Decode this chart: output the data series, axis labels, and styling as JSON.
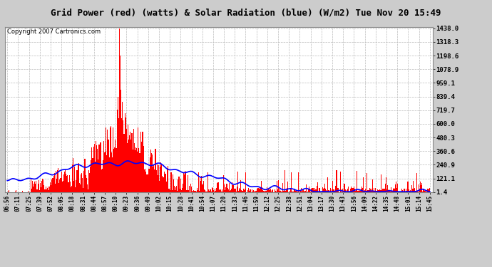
{
  "title": "Grid Power (red) (watts) & Solar Radiation (blue) (W/m2) Tue Nov 20 15:49",
  "copyright_text": "Copyright 2007 Cartronics.com",
  "yticks": [
    1.4,
    121.1,
    240.9,
    360.6,
    480.3,
    600.0,
    719.7,
    839.4,
    959.1,
    1078.9,
    1198.6,
    1318.3,
    1438.0
  ],
  "ymin": 0,
  "ymax": 1438.0,
  "xtick_labels": [
    "06:56",
    "07:11",
    "07:25",
    "07:39",
    "07:52",
    "08:05",
    "08:18",
    "08:31",
    "08:44",
    "08:57",
    "09:10",
    "09:23",
    "09:36",
    "09:49",
    "10:02",
    "10:15",
    "10:28",
    "10:41",
    "10:54",
    "11:07",
    "11:20",
    "11:33",
    "11:46",
    "11:59",
    "12:12",
    "12:25",
    "12:38",
    "12:51",
    "13:04",
    "13:17",
    "13:30",
    "13:43",
    "13:56",
    "14:09",
    "14:22",
    "14:35",
    "14:48",
    "15:01",
    "15:14",
    "15:45"
  ],
  "bg_color": "#cccccc",
  "plot_bg_color": "#ffffff",
  "bar_color": "#ff0000",
  "line_color": "#0000ff",
  "title_fontsize": 10,
  "copyright_fontsize": 7,
  "n_points": 540
}
